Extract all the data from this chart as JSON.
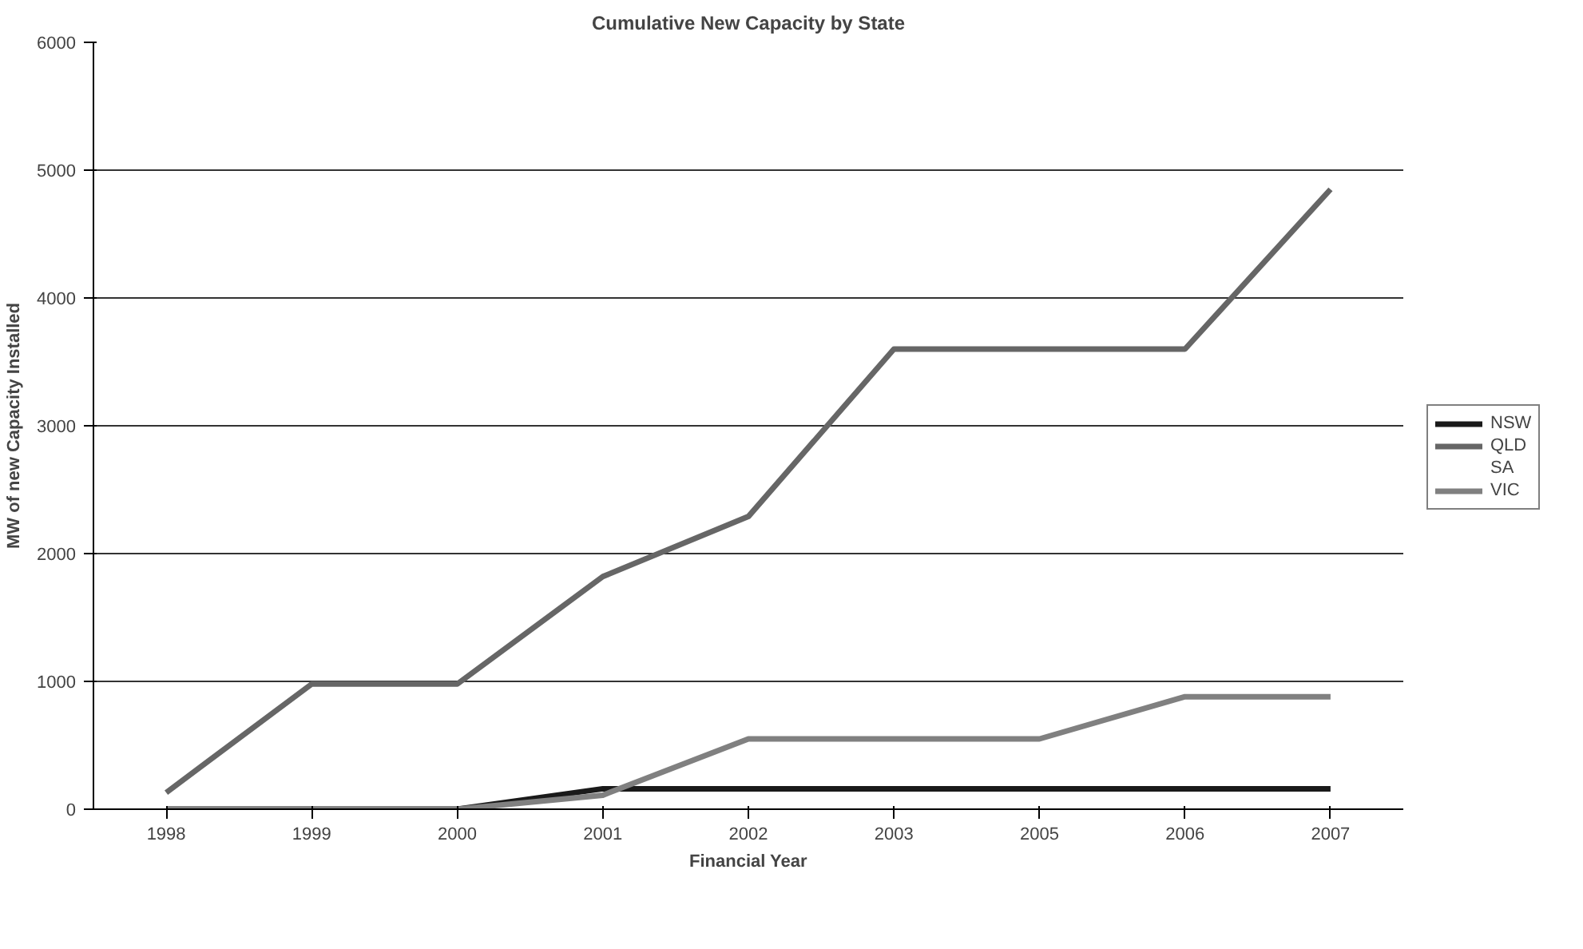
{
  "chart_data": {
    "type": "line",
    "title": "Cumulative New Capacity by State",
    "xlabel": "Financial Year",
    "ylabel": "MW of new Capacity Installed",
    "categories": [
      "1998",
      "1999",
      "2000",
      "2001",
      "2002",
      "2003",
      "2005",
      "2006",
      "2007"
    ],
    "series": [
      {
        "name": "NSW",
        "color": "#1a1a1a",
        "values": [
          0,
          0,
          0,
          160,
          160,
          160,
          160,
          160,
          160
        ]
      },
      {
        "name": "QLD",
        "color": "#666666",
        "values": [
          130,
          980,
          980,
          1820,
          2290,
          3600,
          3600,
          3600,
          4850
        ]
      },
      {
        "name": "SA",
        "values": [
          null,
          null,
          null,
          null,
          null,
          null,
          null,
          null,
          null
        ]
      },
      {
        "name": "VIC",
        "color": "#808080",
        "values": [
          0,
          0,
          0,
          110,
          550,
          550,
          550,
          880,
          880
        ]
      }
    ],
    "ylim": [
      0,
      6000
    ],
    "yticks": [
      0,
      1000,
      2000,
      3000,
      4000,
      5000,
      6000
    ],
    "grid": "y",
    "legend": "right",
    "marker": "none",
    "line_style": "solid"
  }
}
